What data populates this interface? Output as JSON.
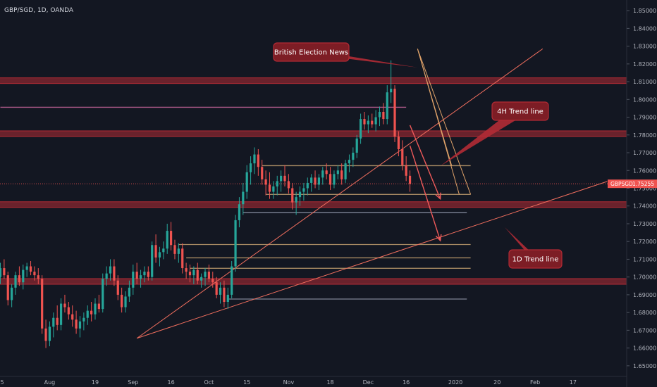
{
  "title": "GBP/SGD, 1D, OANDA",
  "colors": {
    "background": "#131722",
    "up": "#26a69a",
    "down": "#ef5350",
    "zone": "#b22b35",
    "trend": "#f06e5e",
    "level_tan": "#a78a63",
    "level_gray": "#7e8496",
    "level_purple": "#b05a8c",
    "arrow": "#f05a5a",
    "fan": "#e0a36a"
  },
  "price_tag": {
    "symbol": "GBPSGD",
    "value": "1.75255"
  },
  "chart_data": {
    "type": "candlestick",
    "title": "GBP/SGD, 1D, OANDA",
    "xlabel": "",
    "ylabel": "",
    "ylim": [
      1.644,
      1.856
    ],
    "grid": false,
    "y_ticks": [
      "1.65000",
      "1.66000",
      "1.67000",
      "1.68000",
      "1.69000",
      "1.70000",
      "1.71000",
      "1.72000",
      "1.73000",
      "1.74000",
      "1.75000",
      "1.76000",
      "1.77000",
      "1.78000",
      "1.79000",
      "1.80000",
      "1.81000",
      "1.82000",
      "1.83000",
      "1.84000",
      "1.85000"
    ],
    "x_ticks": [
      {
        "label": "15",
        "i": 0
      },
      {
        "label": "Aug",
        "i": 13
      },
      {
        "label": "19",
        "i": 25
      },
      {
        "label": "Sep",
        "i": 35
      },
      {
        "label": "16",
        "i": 45
      },
      {
        "label": "Oct",
        "i": 55
      },
      {
        "label": "15",
        "i": 65
      },
      {
        "label": "Nov",
        "i": 76
      },
      {
        "label": "18",
        "i": 87
      },
      {
        "label": "Dec",
        "i": 97
      },
      {
        "label": "16",
        "i": 107
      },
      {
        "label": "2020",
        "i": 120
      },
      {
        "label": "20",
        "i": 131
      },
      {
        "label": "Feb",
        "i": 141
      },
      {
        "label": "17",
        "i": 151
      }
    ],
    "candles": [
      [
        1.7,
        1.708,
        1.696,
        1.705
      ],
      [
        1.705,
        1.71,
        1.699,
        1.701
      ],
      [
        1.701,
        1.703,
        1.684,
        1.687
      ],
      [
        1.687,
        1.696,
        1.683,
        1.694
      ],
      [
        1.694,
        1.703,
        1.69,
        1.701
      ],
      [
        1.701,
        1.706,
        1.695,
        1.697
      ],
      [
        1.697,
        1.707,
        1.693,
        1.704
      ],
      [
        1.704,
        1.708,
        1.7,
        1.706
      ],
      [
        1.706,
        1.709,
        1.701,
        1.703
      ],
      [
        1.703,
        1.706,
        1.698,
        1.701
      ],
      [
        1.701,
        1.705,
        1.696,
        1.699
      ],
      [
        1.699,
        1.701,
        1.668,
        1.671
      ],
      [
        1.671,
        1.676,
        1.66,
        1.664
      ],
      [
        1.664,
        1.675,
        1.661,
        1.672
      ],
      [
        1.672,
        1.68,
        1.666,
        1.677
      ],
      [
        1.677,
        1.684,
        1.67,
        1.673
      ],
      [
        1.673,
        1.688,
        1.67,
        1.685
      ],
      [
        1.685,
        1.69,
        1.68,
        1.683
      ],
      [
        1.683,
        1.686,
        1.676,
        1.679
      ],
      [
        1.679,
        1.684,
        1.672,
        1.676
      ],
      [
        1.676,
        1.681,
        1.668,
        1.671
      ],
      [
        1.671,
        1.678,
        1.666,
        1.675
      ],
      [
        1.675,
        1.68,
        1.67,
        1.677
      ],
      [
        1.677,
        1.684,
        1.673,
        1.681
      ],
      [
        1.681,
        1.686,
        1.675,
        1.679
      ],
      [
        1.679,
        1.688,
        1.676,
        1.685
      ],
      [
        1.685,
        1.69,
        1.68,
        1.682
      ],
      [
        1.682,
        1.702,
        1.68,
        1.699
      ],
      [
        1.699,
        1.706,
        1.695,
        1.702
      ],
      [
        1.702,
        1.71,
        1.698,
        1.706
      ],
      [
        1.706,
        1.71,
        1.695,
        1.698
      ],
      [
        1.698,
        1.701,
        1.687,
        1.69
      ],
      [
        1.69,
        1.694,
        1.68,
        1.683
      ],
      [
        1.683,
        1.692,
        1.68,
        1.689
      ],
      [
        1.689,
        1.698,
        1.686,
        1.694
      ],
      [
        1.694,
        1.707,
        1.69,
        1.703
      ],
      [
        1.703,
        1.708,
        1.696,
        1.699
      ],
      [
        1.699,
        1.704,
        1.694,
        1.701
      ],
      [
        1.701,
        1.706,
        1.697,
        1.703
      ],
      [
        1.703,
        1.706,
        1.698,
        1.7
      ],
      [
        1.7,
        1.72,
        1.698,
        1.718
      ],
      [
        1.718,
        1.724,
        1.708,
        1.711
      ],
      [
        1.711,
        1.717,
        1.706,
        1.714
      ],
      [
        1.714,
        1.72,
        1.71,
        1.716
      ],
      [
        1.716,
        1.73,
        1.713,
        1.726
      ],
      [
        1.726,
        1.731,
        1.715,
        1.718
      ],
      [
        1.718,
        1.721,
        1.71,
        1.713
      ],
      [
        1.713,
        1.719,
        1.708,
        1.716
      ],
      [
        1.716,
        1.719,
        1.702,
        1.705
      ],
      [
        1.705,
        1.708,
        1.699,
        1.703
      ],
      [
        1.703,
        1.707,
        1.697,
        1.701
      ],
      [
        1.701,
        1.706,
        1.696,
        1.704
      ],
      [
        1.704,
        1.708,
        1.696,
        1.698
      ],
      [
        1.698,
        1.702,
        1.694,
        1.7
      ],
      [
        1.7,
        1.705,
        1.695,
        1.703
      ],
      [
        1.703,
        1.707,
        1.697,
        1.699
      ],
      [
        1.699,
        1.703,
        1.694,
        1.697
      ],
      [
        1.697,
        1.7,
        1.688,
        1.69
      ],
      [
        1.69,
        1.697,
        1.685,
        1.694
      ],
      [
        1.694,
        1.698,
        1.683,
        1.686
      ],
      [
        1.686,
        1.694,
        1.682,
        1.69
      ],
      [
        1.69,
        1.709,
        1.688,
        1.706
      ],
      [
        1.706,
        1.735,
        1.703,
        1.732
      ],
      [
        1.732,
        1.745,
        1.728,
        1.741
      ],
      [
        1.741,
        1.753,
        1.735,
        1.748
      ],
      [
        1.748,
        1.763,
        1.744,
        1.759
      ],
      [
        1.759,
        1.768,
        1.752,
        1.764
      ],
      [
        1.764,
        1.773,
        1.758,
        1.769
      ],
      [
        1.769,
        1.772,
        1.757,
        1.762
      ],
      [
        1.762,
        1.766,
        1.752,
        1.755
      ],
      [
        1.755,
        1.76,
        1.746,
        1.752
      ],
      [
        1.752,
        1.759,
        1.744,
        1.748
      ],
      [
        1.748,
        1.754,
        1.744,
        1.751
      ],
      [
        1.751,
        1.757,
        1.746,
        1.754
      ],
      [
        1.754,
        1.76,
        1.748,
        1.757
      ],
      [
        1.757,
        1.763,
        1.751,
        1.754
      ],
      [
        1.754,
        1.758,
        1.747,
        1.75
      ],
      [
        1.75,
        1.753,
        1.738,
        1.742
      ],
      [
        1.742,
        1.748,
        1.735,
        1.745
      ],
      [
        1.745,
        1.751,
        1.74,
        1.748
      ],
      [
        1.748,
        1.753,
        1.743,
        1.75
      ],
      [
        1.75,
        1.756,
        1.746,
        1.753
      ],
      [
        1.753,
        1.758,
        1.748,
        1.756
      ],
      [
        1.756,
        1.76,
        1.75,
        1.752
      ],
      [
        1.752,
        1.758,
        1.749,
        1.756
      ],
      [
        1.756,
        1.762,
        1.752,
        1.76
      ],
      [
        1.76,
        1.764,
        1.755,
        1.758
      ],
      [
        1.758,
        1.762,
        1.749,
        1.752
      ],
      [
        1.752,
        1.76,
        1.75,
        1.758
      ],
      [
        1.758,
        1.763,
        1.755,
        1.76
      ],
      [
        1.76,
        1.764,
        1.752,
        1.755
      ],
      [
        1.755,
        1.766,
        1.753,
        1.764
      ],
      [
        1.764,
        1.769,
        1.759,
        1.766
      ],
      [
        1.766,
        1.773,
        1.762,
        1.77
      ],
      [
        1.77,
        1.78,
        1.767,
        1.778
      ],
      [
        1.778,
        1.792,
        1.775,
        1.789
      ],
      [
        1.789,
        1.793,
        1.783,
        1.786
      ],
      [
        1.786,
        1.791,
        1.781,
        1.788
      ],
      [
        1.788,
        1.792,
        1.784,
        1.786
      ],
      [
        1.786,
        1.794,
        1.782,
        1.79
      ],
      [
        1.79,
        1.796,
        1.785,
        1.793
      ],
      [
        1.793,
        1.798,
        1.786,
        1.789
      ],
      [
        1.789,
        1.808,
        1.786,
        1.804
      ],
      [
        1.804,
        1.822,
        1.798,
        1.806
      ],
      [
        1.806,
        1.808,
        1.776,
        1.779
      ],
      [
        1.779,
        1.782,
        1.768,
        1.772
      ],
      [
        1.772,
        1.777,
        1.76,
        1.763
      ],
      [
        1.763,
        1.768,
        1.754,
        1.757
      ],
      [
        1.757,
        1.76,
        1.748,
        1.7525
      ]
    ],
    "levels": [
      {
        "kind": "zone",
        "price": 1.8106,
        "i_end": null
      },
      {
        "kind": "zone",
        "price": 1.7807,
        "i_end": null
      },
      {
        "kind": "zone",
        "price": 1.7408,
        "i_end": null
      },
      {
        "kind": "zone",
        "price": 1.6975,
        "i_end": null
      },
      {
        "kind": "line",
        "price": 1.7956,
        "i_start": 0,
        "i_end": 107,
        "color": "level_purple"
      },
      {
        "kind": "line",
        "price": 1.7627,
        "i_start": 69,
        "i_end": 124,
        "color": "level_tan"
      },
      {
        "kind": "line",
        "price": 1.7465,
        "i_start": 70,
        "i_end": 124,
        "color": "level_tan"
      },
      {
        "kind": "line",
        "price": 1.7362,
        "i_start": 64,
        "i_end": 123,
        "color": "level_gray"
      },
      {
        "kind": "line",
        "price": 1.7183,
        "i_start": 47,
        "i_end": 124,
        "color": "level_tan"
      },
      {
        "kind": "line",
        "price": 1.7108,
        "i_start": 49,
        "i_end": 124,
        "color": "level_tan"
      },
      {
        "kind": "line",
        "price": 1.7049,
        "i_start": 50,
        "i_end": 124,
        "color": "level_tan"
      },
      {
        "kind": "line",
        "price": 1.6876,
        "i_start": 60,
        "i_end": 123,
        "color": "level_gray"
      }
    ],
    "trend_lines": [
      {
        "name": "1D Trend line",
        "from": {
          "i": 36,
          "p": 1.6655
        },
        "to": {
          "i": 160,
          "p": 1.7538
        }
      },
      {
        "name": "4H Trend line",
        "from": {
          "i": 36,
          "p": 1.6655
        },
        "to": {
          "i": 143,
          "p": 1.8285
        }
      }
    ],
    "annotations": [
      {
        "text": "British Election News"
      },
      {
        "text": "4H Trend line"
      },
      {
        "text": "1D Trend line"
      }
    ]
  }
}
